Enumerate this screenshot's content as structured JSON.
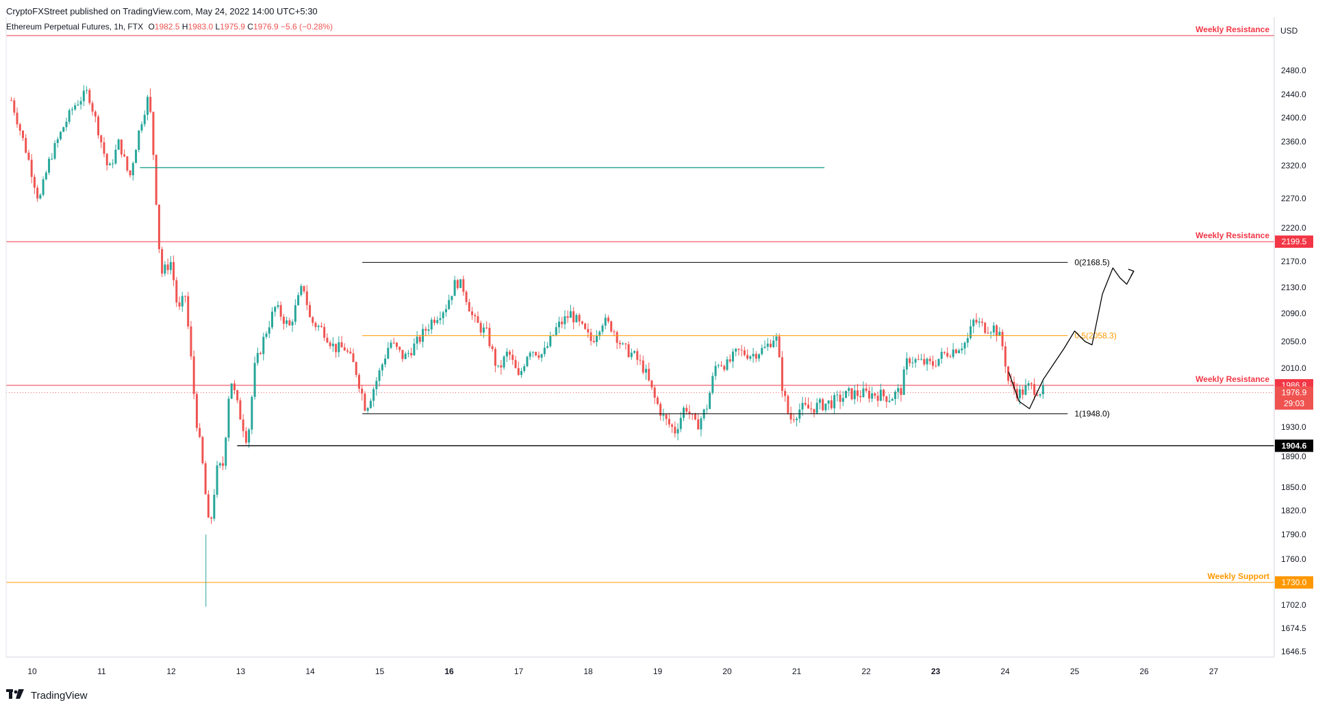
{
  "header": {
    "published": "CryptoFXStreet published on TradingView.com, May 24, 2022 14:00 UTC+5:30",
    "instrument": "Ethereum Perpetual Futures, 1h, FTX",
    "ohlc": {
      "o_label": "O",
      "o": "1982.5",
      "h_label": "H",
      "h": "1983.0",
      "l_label": "L",
      "l": "1975.9",
      "c_label": "C",
      "c": "1976.9",
      "change": "−5.6 (−0.28%)"
    }
  },
  "footer": {
    "brand": "TradingView",
    "logo_icon": "tradingview-logo-icon"
  },
  "currency": "USD",
  "colors": {
    "up": "#26a69a",
    "down": "#ef5350",
    "resistance": "#f23645",
    "support": "#ff9800",
    "fib_mid": "#ff9800",
    "green_line": "#089981",
    "black": "#000000"
  },
  "chart_data": {
    "type": "candlestick",
    "y_ticks": [
      2480.0,
      2440.0,
      2400.0,
      2360.0,
      2320.0,
      2270.0,
      2220.0,
      2170.0,
      2130.0,
      2090.0,
      2050.0,
      2010.0,
      1930.0,
      1890.0,
      1850.0,
      1820.0,
      1790.0,
      1760.0,
      1702.0,
      1674.5,
      1646.5
    ],
    "x_ticks": [
      {
        "label": "10",
        "day": 10
      },
      {
        "label": "11",
        "day": 11
      },
      {
        "label": "12",
        "day": 12
      },
      {
        "label": "13",
        "day": 13
      },
      {
        "label": "14",
        "day": 14
      },
      {
        "label": "15",
        "day": 15
      },
      {
        "label": "16",
        "day": 16,
        "bold": true
      },
      {
        "label": "17",
        "day": 17
      },
      {
        "label": "18",
        "day": 18
      },
      {
        "label": "19",
        "day": 19
      },
      {
        "label": "20",
        "day": 20
      },
      {
        "label": "21",
        "day": 21
      },
      {
        "label": "22",
        "day": 22
      },
      {
        "label": "23",
        "day": 23,
        "bold": true
      },
      {
        "label": "24",
        "day": 24
      },
      {
        "label": "25",
        "day": 25
      },
      {
        "label": "26",
        "day": 26
      },
      {
        "label": "27",
        "day": 27
      }
    ],
    "horizontal_levels": [
      {
        "label": "Weekly Resistance",
        "price": 2530,
        "color": "#f23645",
        "price_tag": ""
      },
      {
        "label": "Weekly Resistance",
        "price": 2199.5,
        "color": "#f23645",
        "price_tag": "2199.5"
      },
      {
        "label": "Weekly Resistance",
        "price": 1986.8,
        "color": "#f23645",
        "price_tag": "1986.8"
      },
      {
        "label": "Weekly Support",
        "price": 1730.0,
        "color": "#ff9800",
        "price_tag": "1730.0"
      }
    ],
    "segments": [
      {
        "price": 2317,
        "from_day": 11.55,
        "to_day": 21.4,
        "color": "#089981"
      },
      {
        "price": 1904.6,
        "from_day": 12.95,
        "to_day": 28.0,
        "color": "#000000",
        "price_tag": "1904.6"
      }
    ],
    "fibonacci": [
      {
        "label": "0(2168.5)",
        "price": 2168.5,
        "from_day": 14.75,
        "to_day": 24.9,
        "color": "#000000"
      },
      {
        "label": "0.5(2058.3)",
        "price": 2058.3,
        "from_day": 14.75,
        "to_day": 24.9,
        "color": "#ff9800"
      },
      {
        "label": "1(1948.0)",
        "price": 1948.0,
        "from_day": 14.75,
        "to_day": 24.9,
        "color": "#000000"
      }
    ],
    "last_price": {
      "value": "1976.9",
      "countdown": "29:03"
    },
    "projection_path": [
      [
        24.05,
        2005
      ],
      [
        24.2,
        1965
      ],
      [
        24.35,
        1955
      ],
      [
        24.55,
        1995
      ],
      [
        24.85,
        2040
      ],
      [
        25.0,
        2065
      ],
      [
        25.15,
        2050
      ],
      [
        25.25,
        2045
      ],
      [
        25.4,
        2120
      ],
      [
        25.55,
        2160
      ],
      [
        25.65,
        2145
      ],
      [
        25.75,
        2135
      ],
      [
        25.85,
        2155
      ]
    ],
    "price_keypoints": [
      [
        9.7,
        2430
      ],
      [
        9.9,
        2350
      ],
      [
        10.1,
        2265
      ],
      [
        10.25,
        2330
      ],
      [
        10.45,
        2385
      ],
      [
        10.6,
        2420
      ],
      [
        10.8,
        2445
      ],
      [
        10.95,
        2380
      ],
      [
        11.1,
        2310
      ],
      [
        11.25,
        2360
      ],
      [
        11.4,
        2300
      ],
      [
        11.55,
        2385
      ],
      [
        11.68,
        2440
      ],
      [
        11.75,
        2330
      ],
      [
        11.85,
        2150
      ],
      [
        12.0,
        2170
      ],
      [
        12.1,
        2090
      ],
      [
        12.2,
        2120
      ],
      [
        12.35,
        1950
      ],
      [
        12.45,
        1880
      ],
      [
        12.55,
        1790
      ],
      [
        12.65,
        1870
      ],
      [
        12.75,
        1880
      ],
      [
        12.85,
        2000
      ],
      [
        12.95,
        1960
      ],
      [
        13.1,
        1910
      ],
      [
        13.2,
        2010
      ],
      [
        13.35,
        2060
      ],
      [
        13.5,
        2100
      ],
      [
        13.7,
        2070
      ],
      [
        13.9,
        2135
      ],
      [
        14.0,
        2080
      ],
      [
        14.2,
        2065
      ],
      [
        14.35,
        2040
      ],
      [
        14.5,
        2040
      ],
      [
        14.65,
        2010
      ],
      [
        14.8,
        1955
      ],
      [
        15.0,
        2005
      ],
      [
        15.15,
        2050
      ],
      [
        15.35,
        2025
      ],
      [
        15.55,
        2050
      ],
      [
        15.75,
        2080
      ],
      [
        15.95,
        2100
      ],
      [
        16.1,
        2140
      ],
      [
        16.2,
        2130
      ],
      [
        16.35,
        2080
      ],
      [
        16.55,
        2060
      ],
      [
        16.7,
        2005
      ],
      [
        16.85,
        2035
      ],
      [
        17.0,
        1995
      ],
      [
        17.15,
        2040
      ],
      [
        17.35,
        2030
      ],
      [
        17.55,
        2070
      ],
      [
        17.75,
        2090
      ],
      [
        17.9,
        2070
      ],
      [
        18.05,
        2050
      ],
      [
        18.2,
        2080
      ],
      [
        18.35,
        2070
      ],
      [
        18.5,
        2040
      ],
      [
        18.65,
        2030
      ],
      [
        18.8,
        2010
      ],
      [
        18.95,
        1970
      ],
      [
        19.1,
        1940
      ],
      [
        19.25,
        1925
      ],
      [
        19.4,
        1960
      ],
      [
        19.55,
        1930
      ],
      [
        19.7,
        1955
      ],
      [
        19.85,
        2020
      ],
      [
        20.0,
        2015
      ],
      [
        20.15,
        2035
      ],
      [
        20.35,
        2030
      ],
      [
        20.55,
        2040
      ],
      [
        20.7,
        2060
      ],
      [
        20.8,
        1980
      ],
      [
        20.9,
        1940
      ],
      [
        21.05,
        1955
      ],
      [
        21.2,
        1955
      ],
      [
        21.35,
        1960
      ],
      [
        21.55,
        1965
      ],
      [
        21.75,
        1975
      ],
      [
        21.95,
        1975
      ],
      [
        22.15,
        1975
      ],
      [
        22.35,
        1970
      ],
      [
        22.5,
        1980
      ],
      [
        22.6,
        2025
      ],
      [
        22.75,
        2020
      ],
      [
        22.95,
        2015
      ],
      [
        23.1,
        2030
      ],
      [
        23.3,
        2040
      ],
      [
        23.45,
        2050
      ],
      [
        23.55,
        2080
      ],
      [
        23.7,
        2070
      ],
      [
        23.85,
        2070
      ],
      [
        23.95,
        2050
      ],
      [
        24.05,
        1990
      ],
      [
        24.2,
        1975
      ],
      [
        24.35,
        1985
      ],
      [
        24.55,
        1978
      ]
    ]
  }
}
